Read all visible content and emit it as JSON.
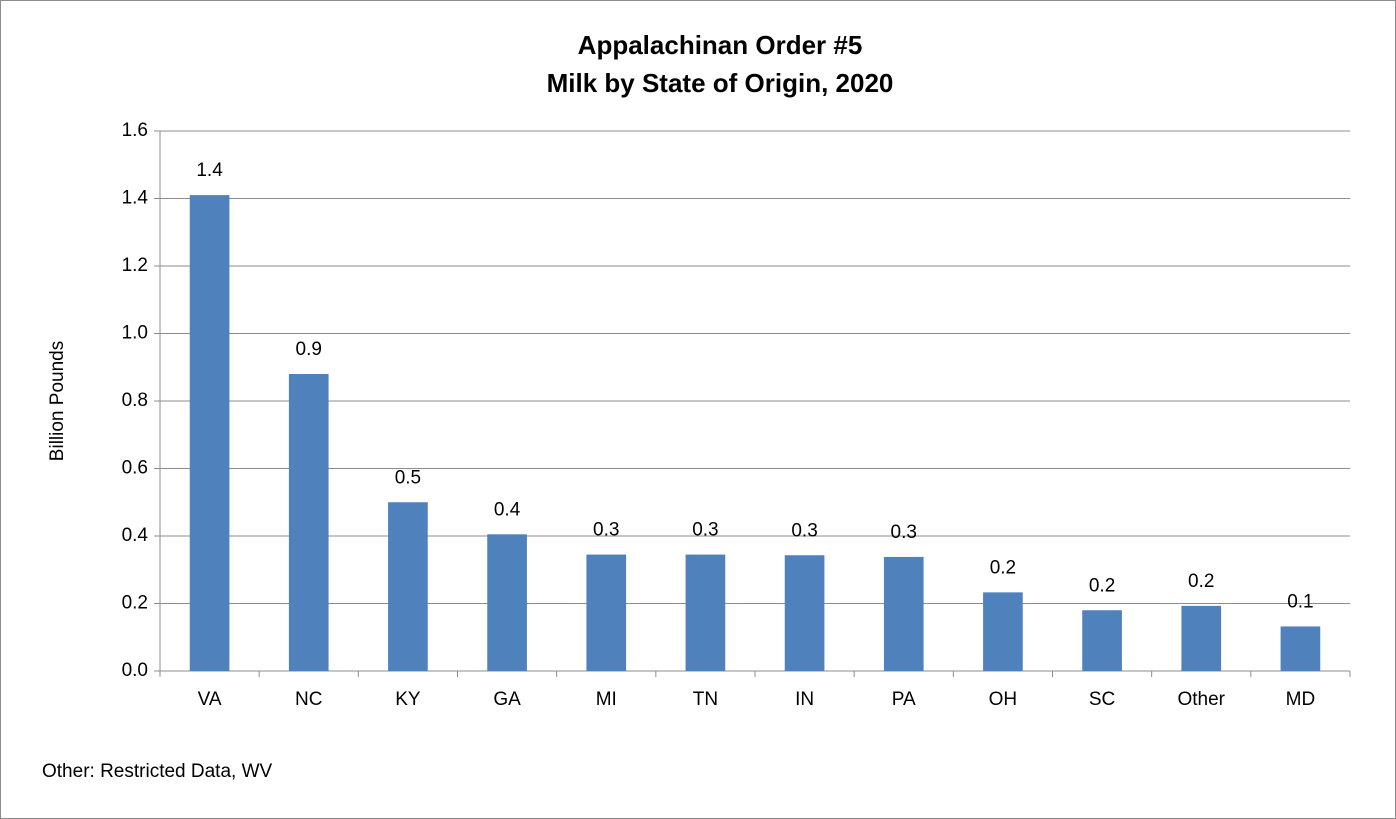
{
  "chart_data": {
    "type": "bar",
    "title": "Appalachinan Order #5",
    "subtitle": "Milk by State of Origin, 2020",
    "y_label": "Billion Pounds",
    "annotation": "Other: Restricted Data, WV",
    "categories": [
      "VA",
      "NC",
      "KY",
      "GA",
      "MI",
      "TN",
      "IN",
      "PA",
      "OH",
      "SC",
      "Other",
      "MD"
    ],
    "values": [
      1.41,
      0.88,
      0.5,
      0.405,
      0.345,
      0.345,
      0.343,
      0.338,
      0.233,
      0.18,
      0.193,
      0.132
    ],
    "value_labels": [
      "1.4",
      "0.9",
      "0.5",
      "0.4",
      "0.3",
      "0.3",
      "0.3",
      "0.3",
      "0.2",
      "0.2",
      "0.2",
      "0.1"
    ],
    "color": "#4f81bd",
    "ylim": [
      0,
      1.6
    ],
    "yticks": [
      {
        "value": 0,
        "label": "0.0"
      },
      0.2,
      0.4,
      0.6,
      0.8,
      {
        "value": 1,
        "label": "1.0"
      },
      1.2,
      1.4,
      1.6
    ],
    "grid": true
  }
}
